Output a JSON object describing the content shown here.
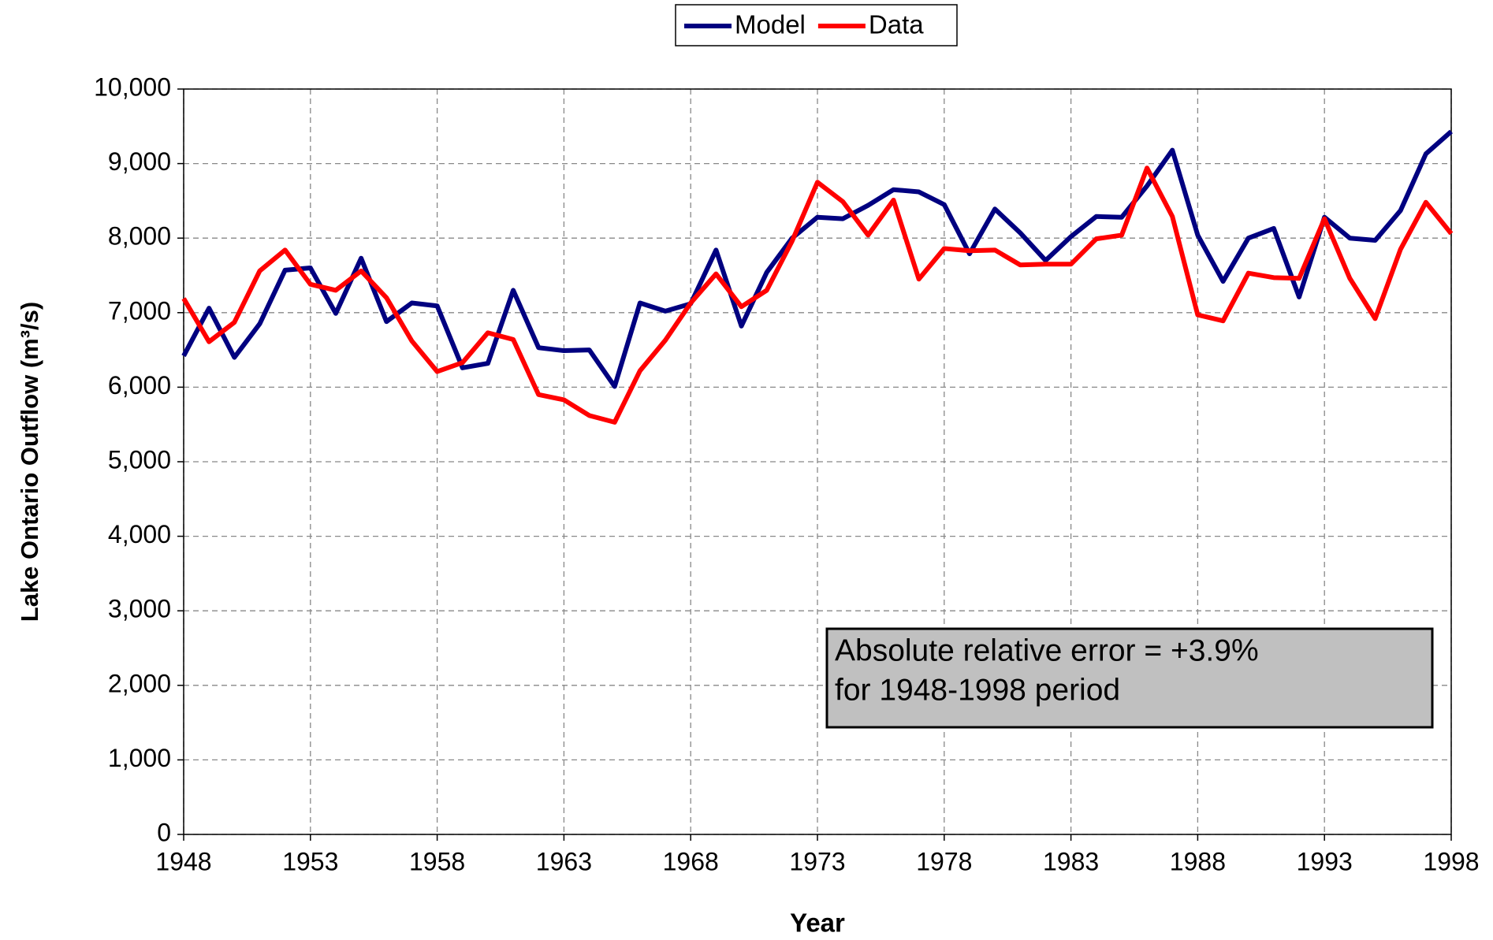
{
  "chart_data": {
    "type": "line",
    "x_label": "Year",
    "y_label": "Lake Ontario Outflow (m³/s)",
    "annotation": [
      "Absolute relative error = +3.9%",
      "for 1948-1998 period"
    ],
    "x": [
      1948,
      1949,
      1950,
      1951,
      1952,
      1953,
      1954,
      1955,
      1956,
      1957,
      1958,
      1959,
      1960,
      1961,
      1962,
      1963,
      1964,
      1965,
      1966,
      1967,
      1968,
      1969,
      1970,
      1971,
      1972,
      1973,
      1974,
      1975,
      1976,
      1977,
      1978,
      1979,
      1980,
      1981,
      1982,
      1983,
      1984,
      1985,
      1986,
      1987,
      1988,
      1989,
      1990,
      1991,
      1992,
      1993,
      1994,
      1995,
      1996,
      1997,
      1998
    ],
    "series": [
      {
        "name": "Model",
        "color": "#000080",
        "values": [
          6420,
          7060,
          6400,
          6850,
          7570,
          7600,
          6990,
          7730,
          6880,
          7130,
          7090,
          6260,
          6320,
          7300,
          6530,
          6490,
          6500,
          6010,
          7130,
          7020,
          7120,
          7840,
          6820,
          7540,
          8000,
          8280,
          8260,
          8440,
          8650,
          8620,
          8450,
          7790,
          8390,
          8070,
          7700,
          8020,
          8290,
          8280,
          8700,
          9180,
          8040,
          7420,
          8000,
          8130,
          7210,
          8280,
          8000,
          7970,
          8370,
          9130,
          9430
        ]
      },
      {
        "name": "Data",
        "color": "#ff0000",
        "values": [
          7190,
          6610,
          6870,
          7560,
          7840,
          7380,
          7300,
          7560,
          7200,
          6620,
          6210,
          6330,
          6730,
          6640,
          5900,
          5830,
          5620,
          5530,
          6220,
          6630,
          7130,
          7520,
          7080,
          7300,
          7960,
          8750,
          8490,
          8040,
          8510,
          7450,
          7860,
          7830,
          7840,
          7640,
          7650,
          7650,
          7990,
          8040,
          8940,
          8290,
          6970,
          6890,
          7530,
          7470,
          7460,
          8260,
          7460,
          6920,
          7850,
          8480,
          8060
        ]
      }
    ],
    "xlim": [
      1948,
      1998
    ],
    "xticks": [
      1948,
      1953,
      1958,
      1963,
      1968,
      1973,
      1978,
      1983,
      1988,
      1993,
      1998
    ],
    "ylim": [
      0,
      10000
    ],
    "yticks": [
      0,
      {
        "value": 1000,
        "label": "1,000"
      },
      {
        "value": 2000,
        "label": "2,000"
      },
      {
        "value": 3000,
        "label": "3,000"
      },
      {
        "value": 4000,
        "label": "4,000"
      },
      {
        "value": 5000,
        "label": "5,000"
      },
      {
        "value": 6000,
        "label": "6,000"
      },
      {
        "value": 7000,
        "label": "7,000"
      },
      {
        "value": 8000,
        "label": "8,000"
      },
      {
        "value": 9000,
        "label": "9,000"
      },
      {
        "value": 10000,
        "label": "10,000"
      }
    ],
    "grid": true,
    "legend": "top"
  }
}
